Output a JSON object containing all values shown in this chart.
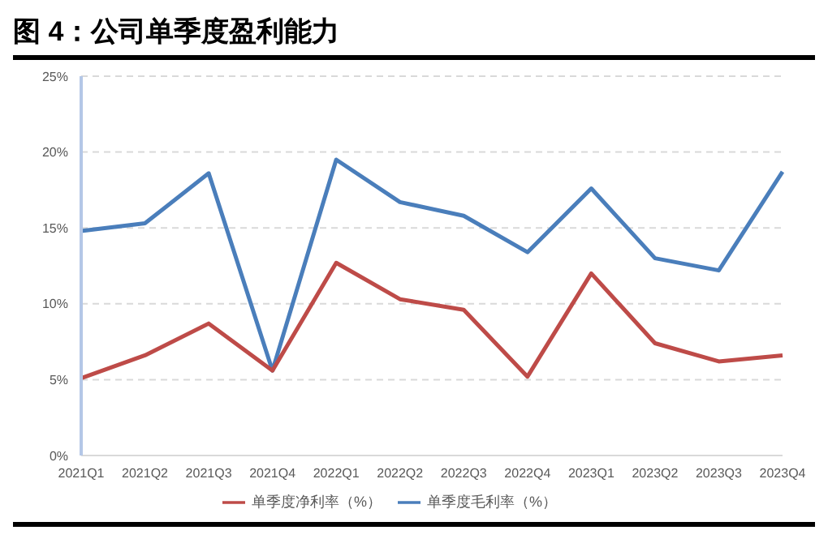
{
  "chart_data": {
    "type": "line",
    "title": "图 4：公司单季度盈利能力",
    "categories": [
      "2021Q1",
      "2021Q2",
      "2021Q3",
      "2021Q4",
      "2022Q1",
      "2022Q2",
      "2022Q3",
      "2022Q4",
      "2023Q1",
      "2023Q2",
      "2023Q3",
      "2023Q4"
    ],
    "series": [
      {
        "name": "单季度毛利率（%）",
        "color": "#4a7ebb",
        "values": [
          14.8,
          15.3,
          18.6,
          5.6,
          19.5,
          16.7,
          15.8,
          13.4,
          17.6,
          13.0,
          12.2,
          18.7
        ]
      },
      {
        "name": "单季度净利率（%）",
        "color": "#be4b48",
        "values": [
          5.1,
          6.6,
          8.7,
          5.6,
          12.7,
          10.3,
          9.6,
          5.2,
          12.0,
          7.4,
          6.2,
          6.6
        ]
      }
    ],
    "ylim": [
      0,
      25
    ],
    "yticks": [
      {
        "value": 0,
        "label": "0%"
      },
      {
        "value": 5,
        "label": "5%"
      },
      {
        "value": 10,
        "label": "10%"
      },
      {
        "value": 15,
        "label": "15%"
      },
      {
        "value": 20,
        "label": "20%"
      },
      {
        "value": 25,
        "label": "25%"
      }
    ],
    "grid": "y",
    "legend": "bottom",
    "marker": "none",
    "line_style": "solid"
  }
}
